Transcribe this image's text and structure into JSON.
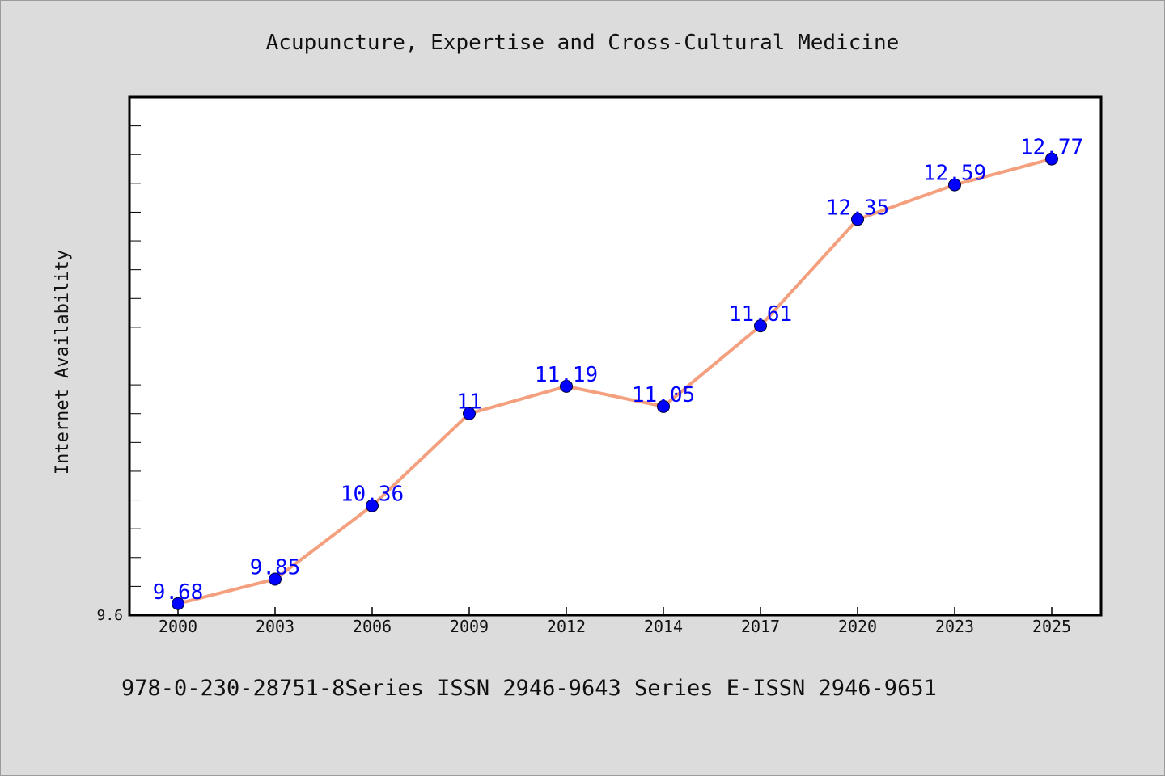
{
  "chart_data": {
    "type": "line",
    "title": "Acupuncture, Expertise and Cross-Cultural Medicine",
    "xlabel": "",
    "ylabel": "Internet Availability",
    "categories": [
      "2000",
      "2003",
      "2006",
      "2009",
      "2012",
      "2014",
      "2017",
      "2020",
      "2023",
      "2025"
    ],
    "series": [
      {
        "values": [
          9.68,
          9.85,
          10.36,
          11,
          11.19,
          11.05,
          11.61,
          12.35,
          12.59,
          12.77
        ],
        "data_labels": [
          "9.68",
          "9.85",
          "10.36",
          "11",
          "11.19",
          "11.05",
          "11.61",
          "12.35",
          "12.59",
          "12.77"
        ]
      }
    ],
    "ylim": [
      9.6,
      13.2
    ],
    "y_tick_labels": [
      "9.6"
    ],
    "y_minor_tick_step": 0.2,
    "grid": false,
    "legend": "none",
    "line_color": "#f4a07e",
    "marker_color": "#0000ff",
    "label_color": "#0000ff"
  },
  "footer_text": "978-0-230-28751-8Series ISSN 2946-9643 Series E-ISSN 2946-9651"
}
